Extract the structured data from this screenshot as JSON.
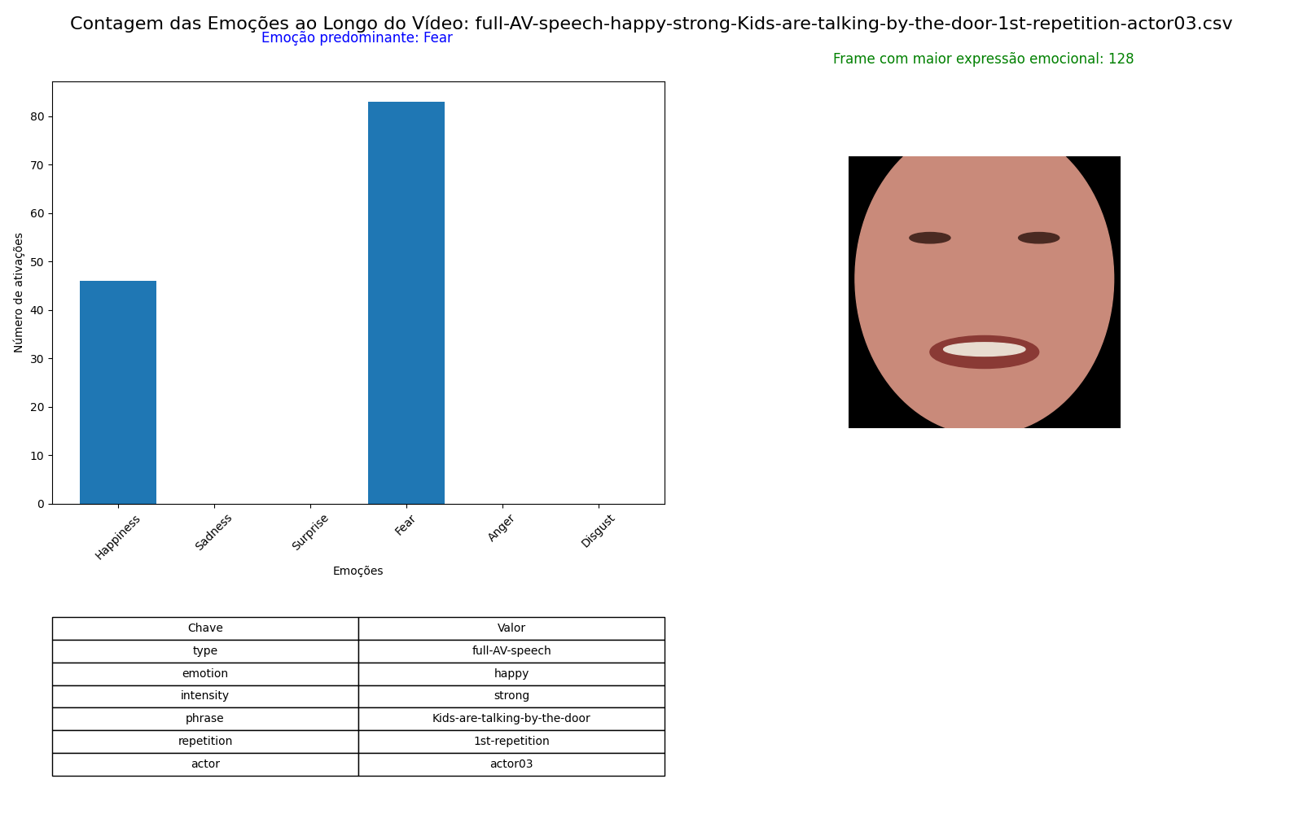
{
  "chart_data": {
    "type": "bar",
    "title": "Contagem das Emoções ao Longo do Vídeo: full-AV-speech-happy-strong-Kids-are-talking-by-the-door-1st-repetition-actor03.csv",
    "subtitle": "Emoção predominante: Fear",
    "x_label": "Emoções",
    "y_label": "Número de ativações",
    "categories": [
      "Happiness",
      "Sadness",
      "Surprise",
      "Fear",
      "Anger",
      "Disgust"
    ],
    "values": [
      46,
      0,
      0,
      83,
      0,
      0
    ],
    "color": "#1f77b4",
    "ylim": [
      0,
      87.15
    ],
    "yticks": [
      0,
      10,
      20,
      30,
      40,
      50,
      60,
      70,
      80
    ],
    "grid": false
  },
  "annotations": [
    "Frame com maior expressão emocional: 128"
  ],
  "table": {
    "columns": [
      "Chave",
      "Valor"
    ],
    "rows": [
      [
        "type",
        "full-AV-speech"
      ],
      [
        "emotion",
        "happy"
      ],
      [
        "intensity",
        "strong"
      ],
      [
        "phrase",
        "Kids-are-talking-by-the-door"
      ],
      [
        "repetition",
        "1st-repetition"
      ],
      [
        "actor",
        "actor03"
      ]
    ]
  }
}
